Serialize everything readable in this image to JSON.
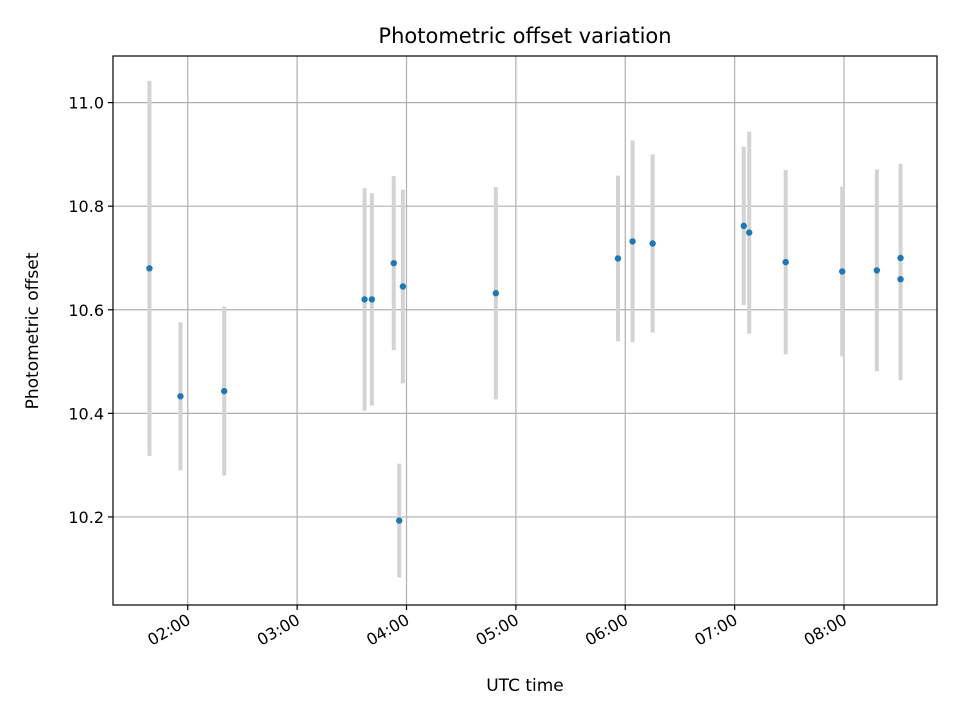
{
  "chart_data": {
    "type": "scatter",
    "title": "Photometric offset variation",
    "xlabel": "UTC time",
    "ylabel": "Photometric offset",
    "x_axis": "time",
    "xlim": [
      "01:19",
      "08:51"
    ],
    "ylim": [
      10.03,
      11.09
    ],
    "x_ticks": [
      "02:00",
      "03:00",
      "04:00",
      "05:00",
      "06:00",
      "07:00",
      "08:00"
    ],
    "y_ticks": [
      "10.2",
      "10.4",
      "10.6",
      "10.8",
      "11.0"
    ],
    "grid": true,
    "legend": "none",
    "colors": {
      "points": "#1f77b4",
      "errorbars": "#d3d3d3",
      "grid": "#b0b0b0"
    },
    "series": [
      {
        "points": [
          {
            "x": "01:39",
            "y": 10.68,
            "yerr": 0.362
          },
          {
            "x": "01:56",
            "y": 10.433,
            "yerr": 0.143
          },
          {
            "x": "02:20",
            "y": 10.443,
            "yerr": 0.163
          },
          {
            "x": "03:37",
            "y": 10.62,
            "yerr": 0.215
          },
          {
            "x": "03:41",
            "y": 10.62,
            "yerr": 0.205
          },
          {
            "x": "03:53",
            "y": 10.69,
            "yerr": 0.168
          },
          {
            "x": "03:56",
            "y": 10.193,
            "yerr": 0.11
          },
          {
            "x": "03:58",
            "y": 10.645,
            "yerr": 0.187
          },
          {
            "x": "04:49",
            "y": 10.632,
            "yerr": 0.205
          },
          {
            "x": "05:56",
            "y": 10.699,
            "yerr": 0.16
          },
          {
            "x": "06:04",
            "y": 10.732,
            "yerr": 0.195
          },
          {
            "x": "06:15",
            "y": 10.728,
            "yerr": 0.172
          },
          {
            "x": "07:05",
            "y": 10.762,
            "yerr": 0.153
          },
          {
            "x": "07:08",
            "y": 10.749,
            "yerr": 0.195
          },
          {
            "x": "07:28",
            "y": 10.692,
            "yerr": 0.178
          },
          {
            "x": "07:59",
            "y": 10.674,
            "yerr": 0.164
          },
          {
            "x": "08:18",
            "y": 10.676,
            "yerr": 0.195
          },
          {
            "x": "08:31",
            "y": 10.7,
            "yerr": 0.182
          },
          {
            "x": "08:31",
            "y": 10.659,
            "yerr": 0.195
          }
        ]
      }
    ]
  }
}
